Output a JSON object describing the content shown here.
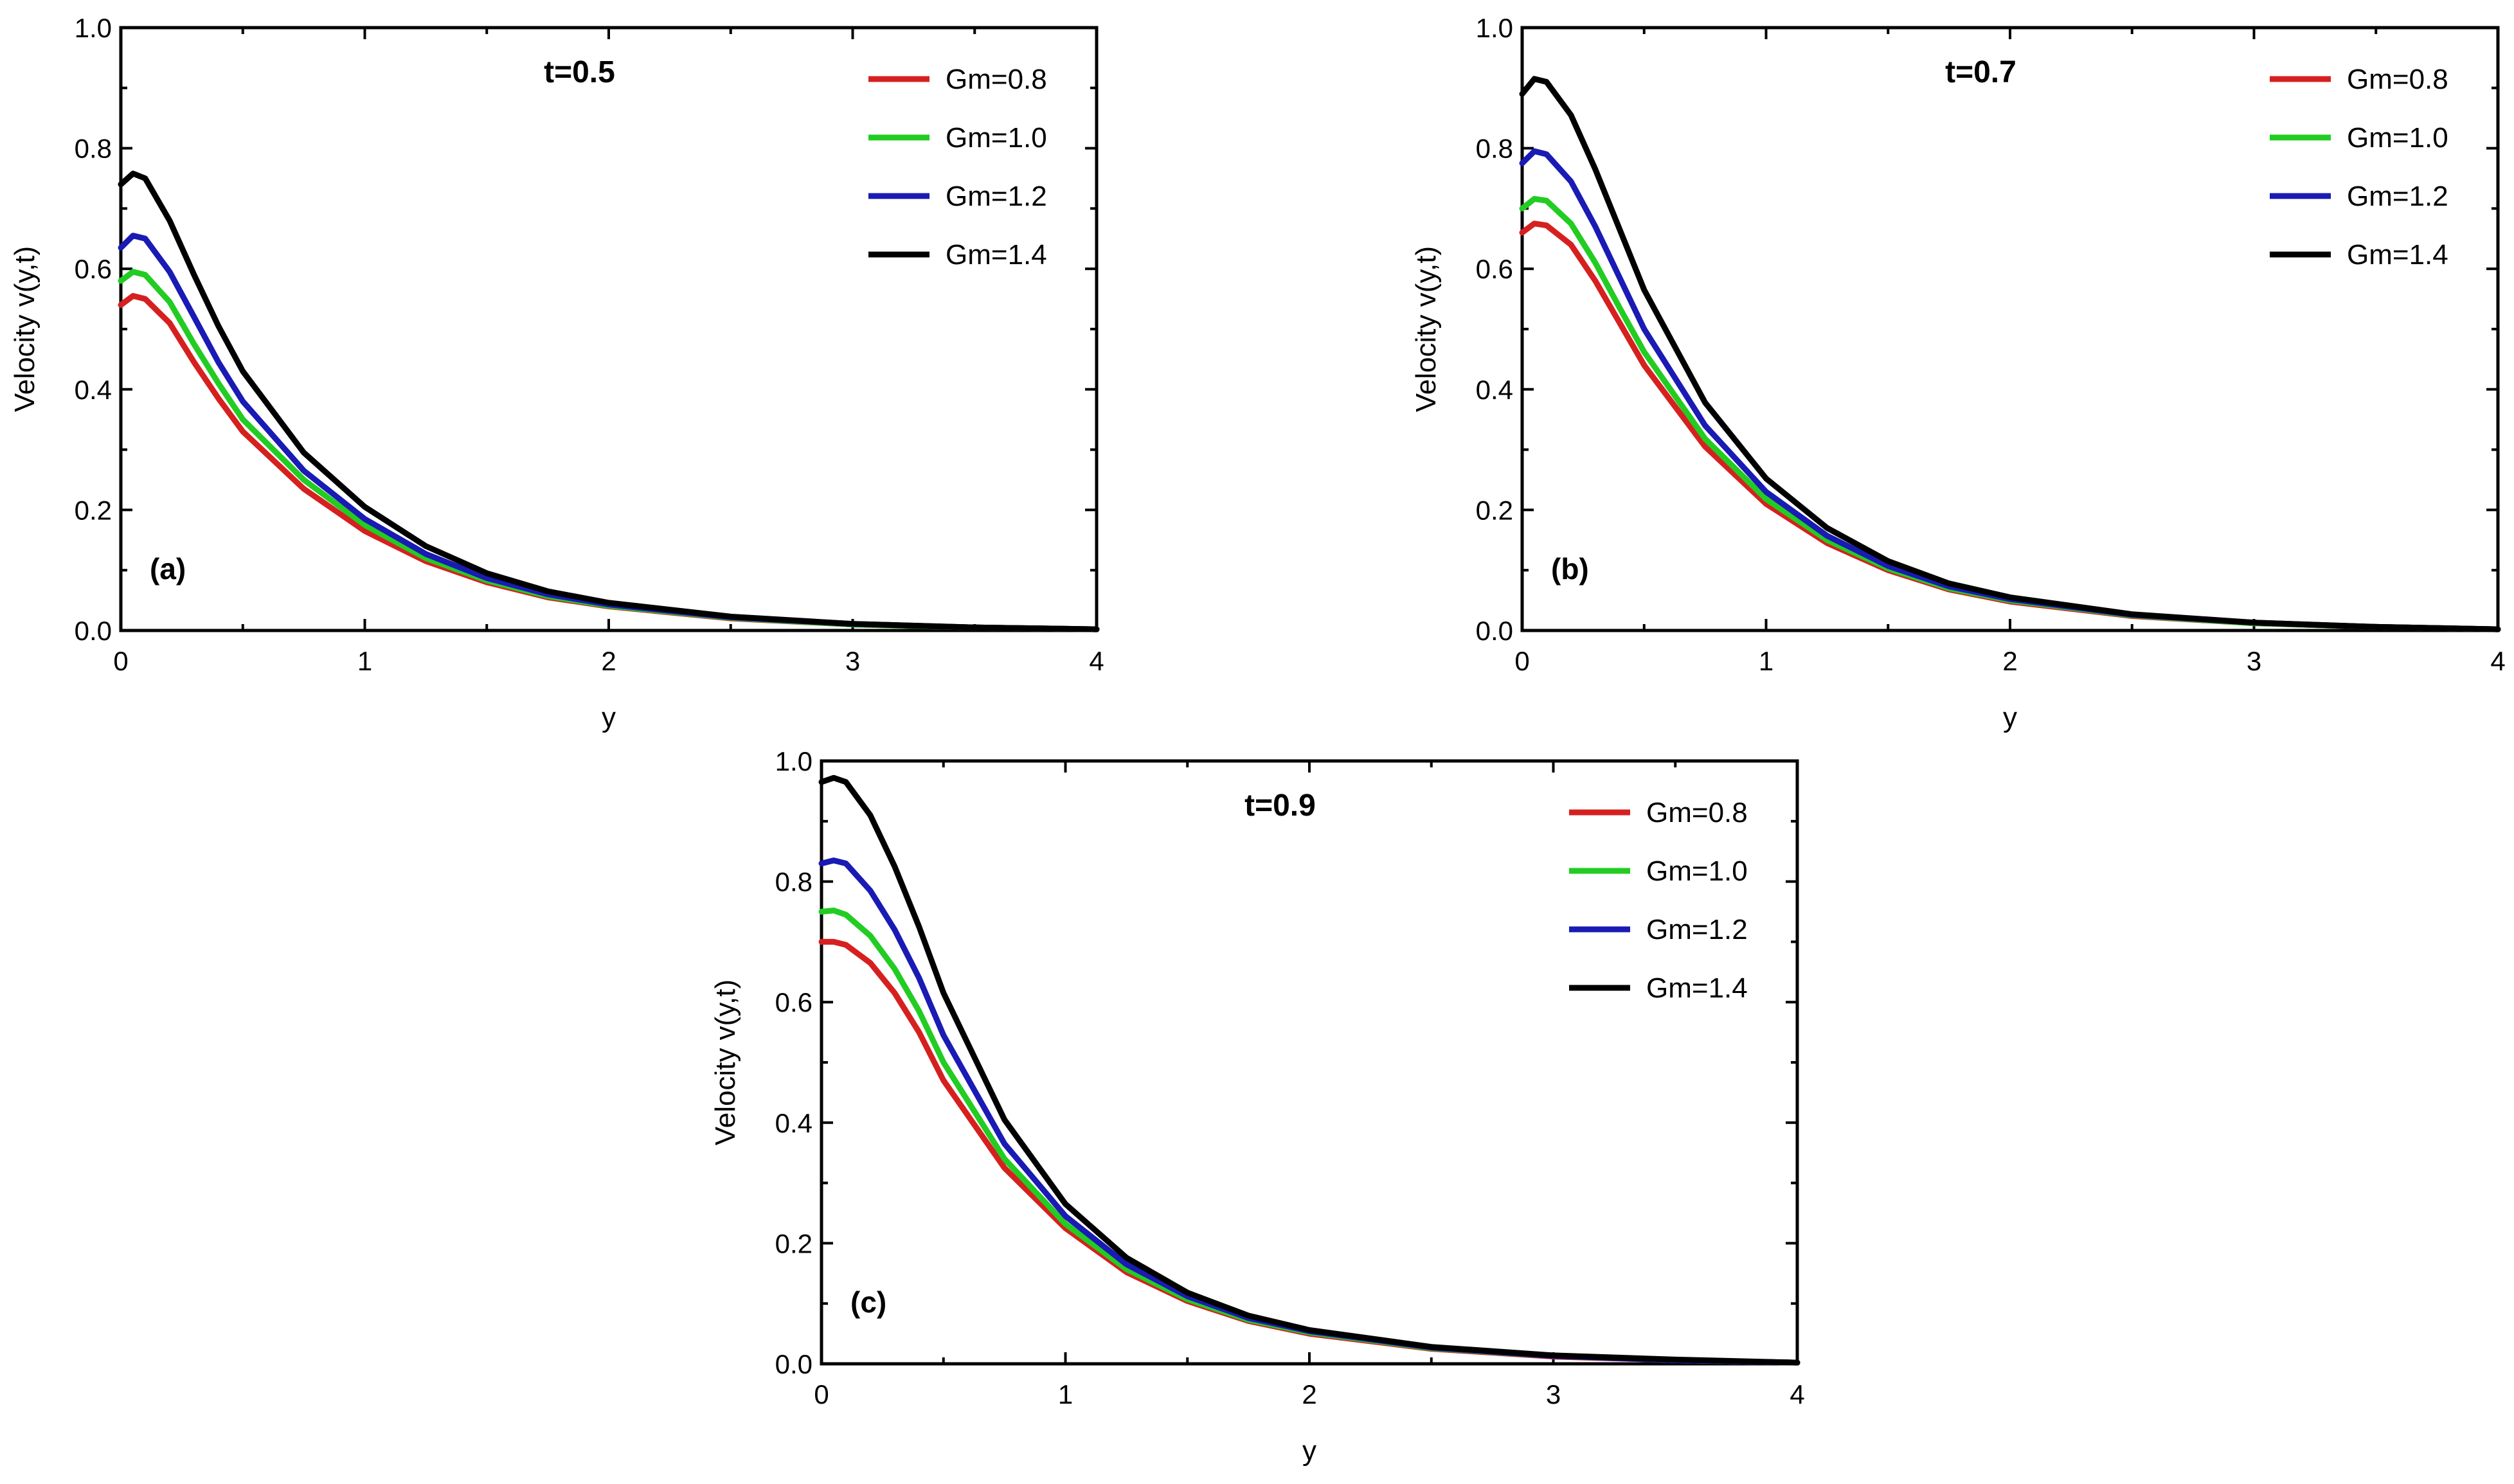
{
  "chart_data": [
    {
      "type": "line",
      "title": "t=0.5",
      "panel_label": "(a)",
      "xlabel": "y",
      "ylabel": "Velocity v(y,t)",
      "xlim": [
        0,
        4
      ],
      "ylim": [
        0,
        1.0
      ],
      "xticks": [
        "0",
        "1",
        "2",
        "3",
        "4"
      ],
      "yticks": [
        "0.0",
        "0.2",
        "0.4",
        "0.6",
        "0.8",
        "1.0"
      ],
      "legend_position": "top-right",
      "x": [
        0,
        0.05,
        0.1,
        0.2,
        0.3,
        0.4,
        0.5,
        0.75,
        1.0,
        1.25,
        1.5,
        1.75,
        2.0,
        2.5,
        3.0,
        3.5,
        4.0
      ],
      "series": [
        {
          "name": "Gm=0.8",
          "color": "#d62020",
          "values": [
            0.54,
            0.555,
            0.55,
            0.51,
            0.445,
            0.385,
            0.33,
            0.235,
            0.165,
            0.115,
            0.08,
            0.055,
            0.04,
            0.02,
            0.01,
            0.005,
            0.002
          ]
        },
        {
          "name": "Gm=1.0",
          "color": "#22cc22",
          "values": [
            0.58,
            0.595,
            0.59,
            0.545,
            0.475,
            0.41,
            0.35,
            0.25,
            0.175,
            0.12,
            0.083,
            0.057,
            0.041,
            0.021,
            0.01,
            0.005,
            0.002
          ]
        },
        {
          "name": "Gm=1.2",
          "color": "#1a1ab4",
          "values": [
            0.635,
            0.655,
            0.65,
            0.595,
            0.52,
            0.445,
            0.38,
            0.265,
            0.185,
            0.127,
            0.087,
            0.06,
            0.043,
            0.022,
            0.011,
            0.005,
            0.002
          ]
        },
        {
          "name": "Gm=1.4",
          "color": "#000000",
          "values": [
            0.74,
            0.758,
            0.75,
            0.68,
            0.59,
            0.505,
            0.43,
            0.295,
            0.205,
            0.14,
            0.095,
            0.065,
            0.046,
            0.023,
            0.011,
            0.005,
            0.002
          ]
        }
      ]
    },
    {
      "type": "line",
      "title": "t=0.7",
      "panel_label": "(b)",
      "xlabel": "y",
      "ylabel": "Velocity v(y,t)",
      "xlim": [
        0,
        4
      ],
      "ylim": [
        0,
        1.0
      ],
      "xticks": [
        "0",
        "1",
        "2",
        "3",
        "4"
      ],
      "yticks": [
        "0.0",
        "0.2",
        "0.4",
        "0.6",
        "0.8",
        "1.0"
      ],
      "legend_position": "top-right",
      "x": [
        0,
        0.05,
        0.1,
        0.2,
        0.3,
        0.4,
        0.5,
        0.75,
        1.0,
        1.25,
        1.5,
        1.75,
        2.0,
        2.5,
        3.0,
        3.5,
        4.0
      ],
      "series": [
        {
          "name": "Gm=0.8",
          "color": "#d62020",
          "values": [
            0.66,
            0.675,
            0.672,
            0.64,
            0.58,
            0.51,
            0.44,
            0.305,
            0.21,
            0.145,
            0.1,
            0.068,
            0.048,
            0.024,
            0.012,
            0.006,
            0.002
          ]
        },
        {
          "name": "Gm=1.0",
          "color": "#22cc22",
          "values": [
            0.7,
            0.716,
            0.713,
            0.675,
            0.61,
            0.535,
            0.462,
            0.318,
            0.218,
            0.15,
            0.103,
            0.07,
            0.05,
            0.025,
            0.012,
            0.006,
            0.002
          ]
        },
        {
          "name": "Gm=1.2",
          "color": "#1a1ab4",
          "values": [
            0.775,
            0.795,
            0.79,
            0.745,
            0.67,
            0.585,
            0.5,
            0.34,
            0.23,
            0.157,
            0.107,
            0.073,
            0.052,
            0.026,
            0.013,
            0.006,
            0.002
          ]
        },
        {
          "name": "Gm=1.4",
          "color": "#000000",
          "values": [
            0.89,
            0.915,
            0.91,
            0.855,
            0.765,
            0.665,
            0.565,
            0.378,
            0.252,
            0.17,
            0.115,
            0.078,
            0.055,
            0.027,
            0.013,
            0.006,
            0.002
          ]
        }
      ]
    },
    {
      "type": "line",
      "title": "t=0.9",
      "panel_label": "(c)",
      "xlabel": "y",
      "ylabel": "Velocity v(y,t)",
      "xlim": [
        0,
        4
      ],
      "ylim": [
        0,
        1.0
      ],
      "xticks": [
        "0",
        "1",
        "2",
        "3",
        "4"
      ],
      "yticks": [
        "0.0",
        "0.2",
        "0.4",
        "0.6",
        "0.8",
        "1.0"
      ],
      "legend_position": "top-right",
      "x": [
        0,
        0.05,
        0.1,
        0.2,
        0.3,
        0.4,
        0.5,
        0.75,
        1.0,
        1.25,
        1.5,
        1.75,
        2.0,
        2.5,
        3.0,
        3.5,
        4.0
      ],
      "series": [
        {
          "name": "Gm=0.8",
          "color": "#d62020",
          "values": [
            0.7,
            0.7,
            0.695,
            0.665,
            0.615,
            0.55,
            0.47,
            0.325,
            0.225,
            0.152,
            0.104,
            0.071,
            0.05,
            0.025,
            0.012,
            0.006,
            0.002
          ]
        },
        {
          "name": "Gm=1.0",
          "color": "#22cc22",
          "values": [
            0.75,
            0.752,
            0.745,
            0.71,
            0.655,
            0.585,
            0.5,
            0.34,
            0.232,
            0.157,
            0.107,
            0.073,
            0.052,
            0.026,
            0.013,
            0.006,
            0.002
          ]
        },
        {
          "name": "Gm=1.2",
          "color": "#1a1ab4",
          "values": [
            0.83,
            0.835,
            0.83,
            0.785,
            0.72,
            0.64,
            0.545,
            0.365,
            0.245,
            0.165,
            0.112,
            0.076,
            0.054,
            0.027,
            0.013,
            0.006,
            0.002
          ]
        },
        {
          "name": "Gm=1.4",
          "color": "#000000",
          "values": [
            0.965,
            0.972,
            0.965,
            0.91,
            0.825,
            0.725,
            0.615,
            0.405,
            0.265,
            0.176,
            0.118,
            0.08,
            0.056,
            0.028,
            0.014,
            0.007,
            0.002
          ]
        }
      ]
    }
  ]
}
